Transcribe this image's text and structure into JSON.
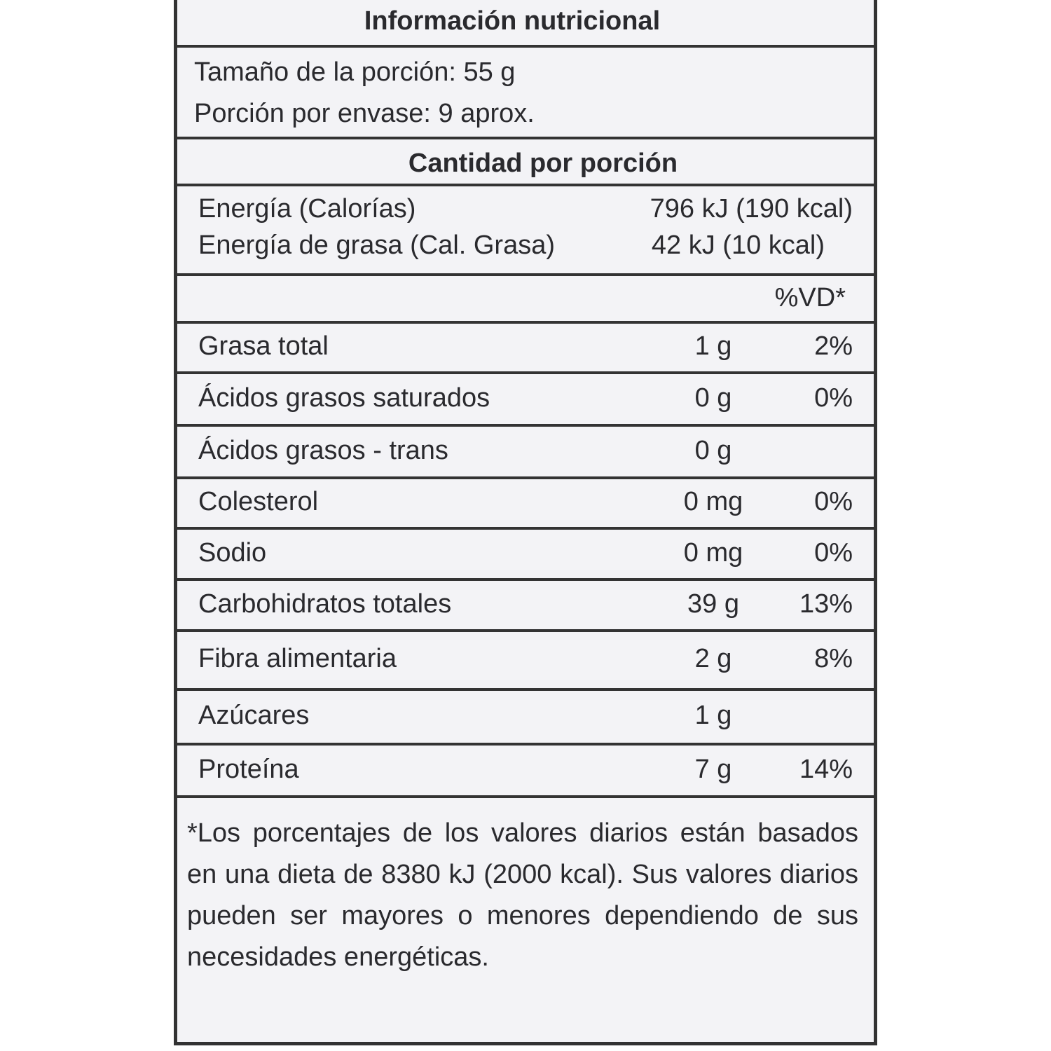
{
  "title": "Información nutricional",
  "serving": [
    "Tamaño de la porción: 55 g",
    "Porción por envase: 9 aprox."
  ],
  "section_header": "Cantidad por porción",
  "energy": [
    {
      "label": "Energía (Calorías)",
      "value": "796 kJ (190 kcal)"
    },
    {
      "label": "Energía de grasa (Cal. Grasa)",
      "value": "42 kJ (10 kcal)"
    }
  ],
  "dv_header": "%VD*",
  "nutrients": [
    {
      "name": "Grasa total",
      "amount": "1 g",
      "dv": "2%"
    },
    {
      "name": "Ácidos grasos saturados",
      "amount": "0 g",
      "dv": "0%"
    },
    {
      "name": "Ácidos grasos - trans",
      "amount": "0 g"
    },
    {
      "name": "Colesterol",
      "amount": "0 mg",
      "dv": "0%"
    },
    {
      "name": "Sodio",
      "amount": "0 mg",
      "dv": "0%"
    },
    {
      "name": "Carbohidratos totales",
      "amount": "39 g",
      "dv": "13%"
    },
    {
      "name": "Fibra alimentaria",
      "amount": "2 g",
      "dv": "8%"
    },
    {
      "name": "Azúcares",
      "amount": "1 g"
    },
    {
      "name": "Proteína",
      "amount": "7 g",
      "dv": "14%"
    }
  ],
  "footnote": "*Los porcentajes de los valores diarios están basados en una dieta de 8380 kJ (2000 kcal). Sus valores diarios pueden ser mayores o menores dependiendo de sus necesidades energéticas."
}
